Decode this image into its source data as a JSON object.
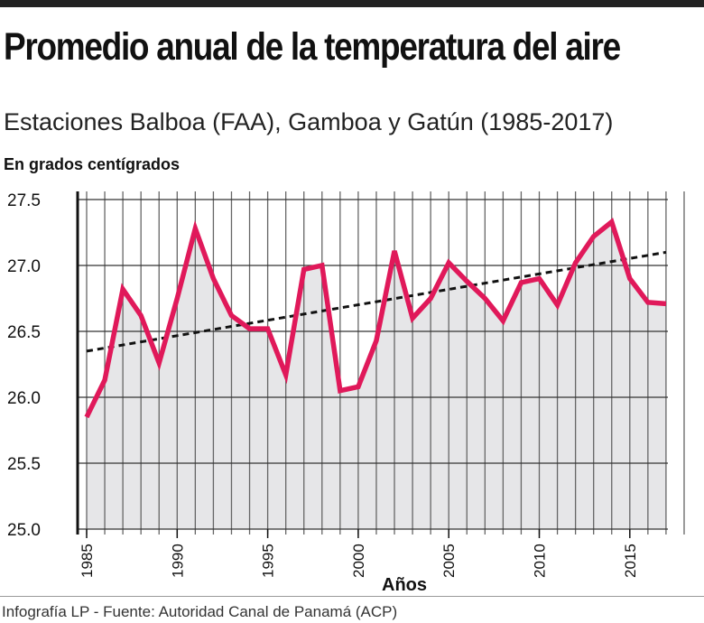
{
  "title": "Promedio anual de la temperatura del aire",
  "subtitle": "Estaciones Balboa (FAA), Gamboa y Gatún (1985-2017)",
  "footer": "Infografía LP  - Fuente: Autoridad Canal de Panamá (ACP)",
  "chart_data": {
    "type": "area",
    "ylabel": "En grados centígrados",
    "xlabel": "Años",
    "ylim": [
      25.0,
      27.5
    ],
    "yticks": [
      "25.0",
      "25.5",
      "26.0",
      "26.5",
      "27.0",
      "27.5"
    ],
    "xticks": [
      "1985",
      "1990",
      "1995",
      "2000",
      "2005",
      "2010",
      "2015"
    ],
    "grid": true,
    "x": [
      1985,
      1986,
      1987,
      1988,
      1989,
      1990,
      1991,
      1992,
      1993,
      1994,
      1995,
      1996,
      1997,
      1998,
      1999,
      2000,
      2001,
      2002,
      2003,
      2004,
      2005,
      2006,
      2007,
      2008,
      2009,
      2010,
      2011,
      2012,
      2013,
      2014,
      2015,
      2016,
      2017
    ],
    "values": [
      25.85,
      26.13,
      26.82,
      26.62,
      26.26,
      26.75,
      27.28,
      26.9,
      26.62,
      26.52,
      26.52,
      26.17,
      26.97,
      27.0,
      26.05,
      26.08,
      26.43,
      27.11,
      26.6,
      26.75,
      27.02,
      26.88,
      26.75,
      26.58,
      26.87,
      26.9,
      26.7,
      27.02,
      27.22,
      27.33,
      26.9,
      26.72,
      26.71
    ],
    "trend": {
      "x": [
        1985,
        2017
      ],
      "values": [
        26.35,
        27.1
      ],
      "style": "dotted"
    },
    "colors": {
      "line": "#e0195a",
      "fill": "#e6e6e8",
      "trend": "#111111",
      "grid": "#555555"
    }
  }
}
